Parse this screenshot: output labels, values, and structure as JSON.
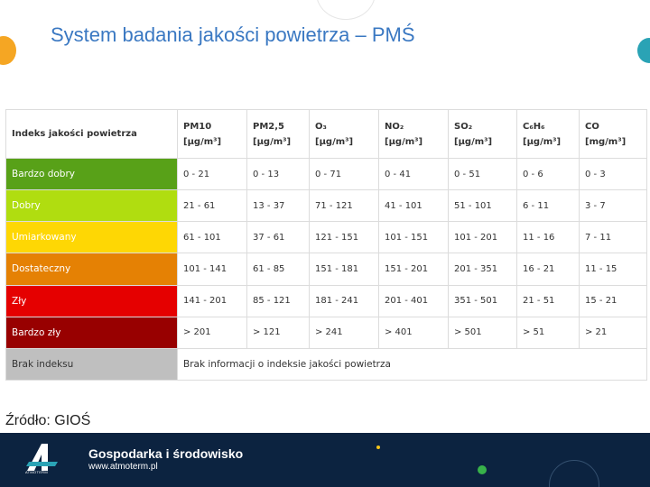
{
  "title": "System badania jakości powietrza – PMŚ",
  "table": {
    "headers": [
      {
        "name": "Indeks jakości powietrza",
        "unit": ""
      },
      {
        "name": "PM10",
        "unit": "[µg/m³]"
      },
      {
        "name": "PM2,5",
        "unit": "[µg/m³]"
      },
      {
        "name": "O₃",
        "unit": "[µg/m³]"
      },
      {
        "name": "NO₂",
        "unit": "[µg/m³]"
      },
      {
        "name": "SO₂",
        "unit": "[µg/m³]"
      },
      {
        "name": "C₆H₆",
        "unit": "[µg/m³]"
      },
      {
        "name": "CO",
        "unit": "[mg/m³]"
      }
    ],
    "rows": [
      {
        "label": "Bardzo dobry",
        "color": "#58a118",
        "values": [
          "0 - 21",
          "0 - 13",
          "0 - 71",
          "0 - 41",
          "0 - 51",
          "0 - 6",
          "0 - 3"
        ]
      },
      {
        "label": "Dobry",
        "color": "#b0dd10",
        "values": [
          "21 - 61",
          "13 - 37",
          "71 - 121",
          "41 - 101",
          "51 - 101",
          "6 - 11",
          "3 - 7"
        ]
      },
      {
        "label": "Umiarkowany",
        "color": "#fed704",
        "values": [
          "61 - 101",
          "37 - 61",
          "121 - 151",
          "101 - 151",
          "101 - 201",
          "11 - 16",
          "7 - 11"
        ]
      },
      {
        "label": "Dostateczny",
        "color": "#e58104",
        "values": [
          "101 - 141",
          "61 - 85",
          "151 - 181",
          "151 - 201",
          "201 - 351",
          "16 - 21",
          "11 - 15"
        ]
      },
      {
        "label": "Zły",
        "color": "#e50000",
        "values": [
          "141 - 201",
          "85 - 121",
          "181 - 241",
          "201 - 401",
          "351 - 501",
          "21 - 51",
          "15 - 21"
        ]
      },
      {
        "label": "Bardzo zły",
        "color": "#980000",
        "values": [
          "> 201",
          "> 121",
          "> 241",
          "> 401",
          "> 501",
          "> 51",
          "> 21"
        ]
      }
    ],
    "no_index": {
      "label": "Brak indeksu",
      "color": "#bfbfbf",
      "note": "Brak informacji o indeksie jakości powietrza"
    }
  },
  "source": "Źródło: GIOŚ",
  "footer": {
    "logo_caption": "ATMOTERM",
    "brand": "Gospodarka i środowisko",
    "url": "www.atmoterm.pl"
  }
}
